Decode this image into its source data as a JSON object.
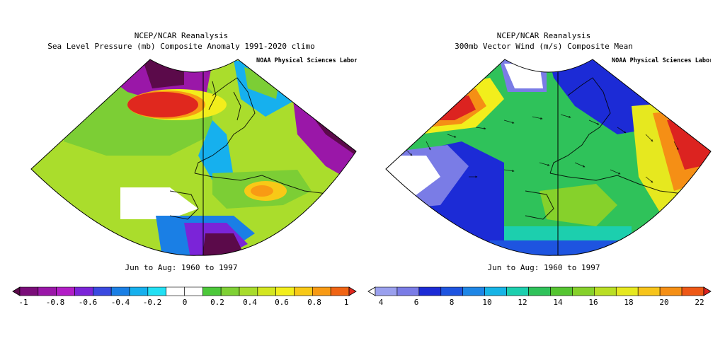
{
  "left": {
    "title1": "NCEP/NCAR Reanalysis",
    "title2": "Sea Level Pressure (mb) Composite Anomaly 1991-2020 climo",
    "credit": "NOAA Physical Sciences Labora",
    "period": "Jun to Aug: 1960 to 1997",
    "colorbar": {
      "ticks": [
        "-1",
        "-0.8",
        "-0.6",
        "-0.4",
        "-0.2",
        "0",
        "0.2",
        "0.4",
        "0.6",
        "0.8",
        "1"
      ],
      "colors": [
        "#5b0a4a",
        "#7a0d79",
        "#9a17a8",
        "#b21ec6",
        "#7b24d8",
        "#3a49e0",
        "#1a7fe5",
        "#16b0ee",
        "#22e0f4",
        "#ffffff",
        "#ffffff",
        "#4cc83a",
        "#7fd135",
        "#a8dc2c",
        "#d3e620",
        "#f2ee1c",
        "#f8c917",
        "#f89a14",
        "#f06414",
        "#e0281e"
      ]
    }
  },
  "right": {
    "title1": "NCEP/NCAR Reanalysis",
    "title2": "300mb Vector Wind (m/s) Composite Mean",
    "credit": "NOAA Physical Sciences Labora",
    "period": "Jun to Aug: 1960 to 1997",
    "colorbar": {
      "ticks": [
        "4",
        "6",
        "8",
        "10",
        "12",
        "14",
        "16",
        "18",
        "20",
        "22"
      ],
      "colors": [
        "#ffffff",
        "#9aa0ee",
        "#7a7ce6",
        "#1c2bd6",
        "#1e54e0",
        "#1e86e6",
        "#17b4e6",
        "#1ccfae",
        "#2fc25a",
        "#55c531",
        "#86d12b",
        "#b9de24",
        "#e6e81f",
        "#f7c41a",
        "#f58f15",
        "#ee5816",
        "#dc2320"
      ]
    }
  }
}
